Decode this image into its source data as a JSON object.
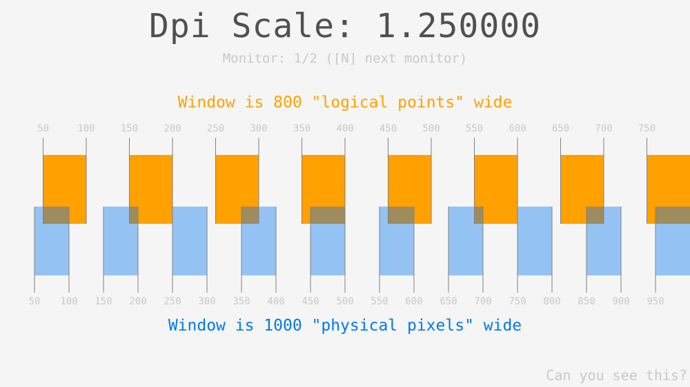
{
  "title": "Dpi Scale: 1.250000",
  "monitor_text": "Monitor: 1/2 ([N] next monitor)",
  "logical_text": "Window is 800 \"logical points\" wide",
  "physical_text": "Window is 1000 \"physical pixels\" wide",
  "corner_text": "Can you see this?",
  "dpi_scale": 1.25,
  "logical_ruler": {
    "labels": [
      "50",
      "100",
      "150",
      "200",
      "250",
      "300",
      "350",
      "400",
      "450",
      "500",
      "550",
      "600",
      "650",
      "700",
      "750"
    ],
    "color": "#ffa100"
  },
  "physical_ruler": {
    "labels": [
      "50",
      "100",
      "150",
      "200",
      "250",
      "300",
      "350",
      "400",
      "450",
      "500",
      "550",
      "600",
      "650",
      "700",
      "750",
      "800",
      "850",
      "900",
      "950"
    ],
    "color": "#94c3f3"
  },
  "colors": {
    "overlap": "#9e8c5e",
    "line": "#808080",
    "label": "#c8c8c8"
  }
}
